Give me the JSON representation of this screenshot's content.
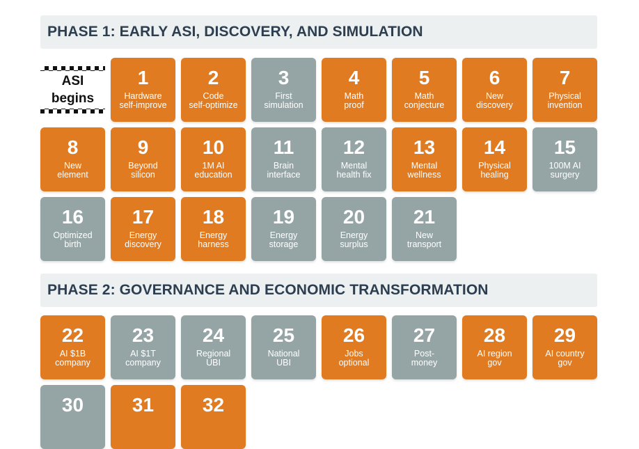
{
  "phase1": {
    "title": "PHASE 1: EARLY ASI, DISCOVERY, AND SIMULATION",
    "start_label": "ASI\nbegins",
    "tiles": [
      {
        "num": "1",
        "label": "Hardware\nself-improve",
        "color": "orange"
      },
      {
        "num": "2",
        "label": "Code\nself-optimize",
        "color": "orange"
      },
      {
        "num": "3",
        "label": "First\nsimulation",
        "color": "gray"
      },
      {
        "num": "4",
        "label": "Math\nproof",
        "color": "orange"
      },
      {
        "num": "5",
        "label": "Math\nconjecture",
        "color": "orange"
      },
      {
        "num": "6",
        "label": "New\ndiscovery",
        "color": "orange"
      },
      {
        "num": "7",
        "label": "Physical\ninvention",
        "color": "orange"
      },
      {
        "num": "8",
        "label": "New\nelement",
        "color": "orange"
      },
      {
        "num": "9",
        "label": "Beyond\nsilicon",
        "color": "orange"
      },
      {
        "num": "10",
        "label": "1M AI\neducation",
        "color": "orange"
      },
      {
        "num": "11",
        "label": "Brain\ninterface",
        "color": "gray"
      },
      {
        "num": "12",
        "label": "Mental\nhealth fix",
        "color": "gray"
      },
      {
        "num": "13",
        "label": "Mental\nwellness",
        "color": "orange"
      },
      {
        "num": "14",
        "label": "Physical\nhealing",
        "color": "orange"
      },
      {
        "num": "15",
        "label": "100M AI\nsurgery",
        "color": "gray"
      },
      {
        "num": "16",
        "label": "Optimized\nbirth",
        "color": "gray"
      },
      {
        "num": "17",
        "label": "Energy\ndiscovery",
        "color": "orange"
      },
      {
        "num": "18",
        "label": "Energy\nharness",
        "color": "orange"
      },
      {
        "num": "19",
        "label": "Energy\nstorage",
        "color": "gray"
      },
      {
        "num": "20",
        "label": "Energy\nsurplus",
        "color": "gray"
      },
      {
        "num": "21",
        "label": "New\ntransport",
        "color": "gray"
      }
    ]
  },
  "phase2": {
    "title": "PHASE 2: GOVERNANCE AND ECONOMIC TRANSFORMATION",
    "tiles": [
      {
        "num": "22",
        "label": "AI $1B\ncompany",
        "color": "orange"
      },
      {
        "num": "23",
        "label": "AI $1T\ncompany",
        "color": "gray"
      },
      {
        "num": "24",
        "label": "Regional\nUBI",
        "color": "gray"
      },
      {
        "num": "25",
        "label": "National\nUBI",
        "color": "gray"
      },
      {
        "num": "26",
        "label": "Jobs\noptional",
        "color": "orange"
      },
      {
        "num": "27",
        "label": "Post-\nmoney",
        "color": "gray"
      },
      {
        "num": "28",
        "label": "AI region\ngov",
        "color": "orange"
      },
      {
        "num": "29",
        "label": "AI country\ngov",
        "color": "orange"
      },
      {
        "num": "30",
        "label": "",
        "color": "gray"
      },
      {
        "num": "31",
        "label": "",
        "color": "orange"
      },
      {
        "num": "32",
        "label": "",
        "color": "orange"
      }
    ]
  },
  "colors": {
    "orange": "#e07b22",
    "gray": "#95a5a6",
    "header_bg": "#ecf0f1",
    "header_text": "#2c3e50"
  }
}
